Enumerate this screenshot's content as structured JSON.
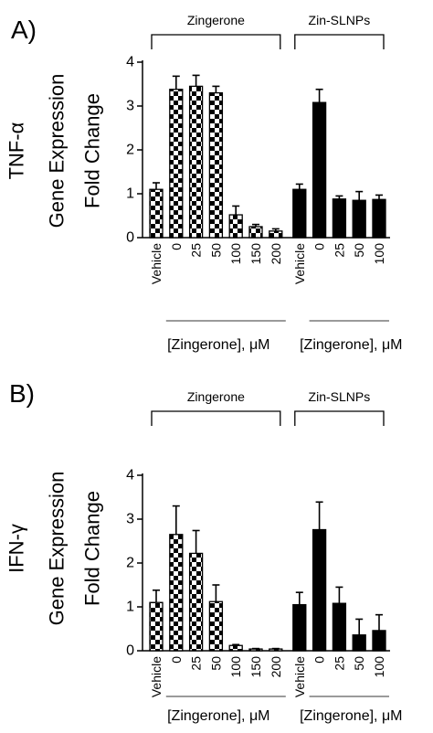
{
  "chart_data": [
    {
      "type": "bar",
      "panel_label": "A)",
      "ylabel_lines": [
        "TNF-α",
        "Gene Expression",
        "Fold Change"
      ],
      "ylim": [
        0,
        4
      ],
      "yticks": [
        "0",
        "1",
        "2",
        "3",
        "4"
      ],
      "categories": [
        "Vehicle",
        "0",
        "25",
        "50",
        "100",
        "150",
        "200",
        "Vehicle",
        "0",
        "25",
        "50",
        "100"
      ],
      "values": [
        1.1,
        3.38,
        3.45,
        3.3,
        0.52,
        0.25,
        0.15,
        1.1,
        3.08,
        0.88,
        0.85,
        0.87
      ],
      "errors": [
        0.15,
        0.3,
        0.25,
        0.15,
        0.2,
        0.05,
        0.05,
        0.12,
        0.3,
        0.07,
        0.2,
        0.1
      ],
      "fills": [
        "checker",
        "checker",
        "checker",
        "checker",
        "checker",
        "checker",
        "checker",
        "solid",
        "solid",
        "solid",
        "solid",
        "solid"
      ],
      "groups": [
        {
          "label": "Zingerone",
          "start": 0,
          "end": 6
        },
        {
          "label": "Zin-SLNPs",
          "start": 7,
          "end": 11
        }
      ],
      "xtitles": [
        {
          "label": "[Zingerone], μM",
          "start": 1,
          "end": 6
        },
        {
          "label": "[Zingerone], μM",
          "start": 8,
          "end": 11
        }
      ],
      "colors": {
        "solid": "#000000",
        "pattern": "#000000",
        "underline": "#9a9a9a"
      }
    },
    {
      "type": "bar",
      "panel_label": "B)",
      "ylabel_lines": [
        "IFN-γ",
        "Gene Expression",
        "Fold Change"
      ],
      "ylim": [
        0,
        4
      ],
      "yticks": [
        "0",
        "1",
        "2",
        "3",
        "4"
      ],
      "categories": [
        "Vehicle",
        "0",
        "25",
        "50",
        "100",
        "150",
        "200",
        "Vehicle",
        "0",
        "25",
        "50",
        "100"
      ],
      "values": [
        1.1,
        2.65,
        2.22,
        1.12,
        0.12,
        0.04,
        0.04,
        1.05,
        2.76,
        1.08,
        0.36,
        0.46
      ],
      "errors": [
        0.28,
        0.65,
        0.52,
        0.38,
        0.02,
        0.01,
        0.01,
        0.28,
        0.63,
        0.37,
        0.36,
        0.36
      ],
      "fills": [
        "checker",
        "checker",
        "checker",
        "checker",
        "checker",
        "checker",
        "checker",
        "solid",
        "solid",
        "solid",
        "solid",
        "solid"
      ],
      "groups": [
        {
          "label": "Zingerone",
          "start": 0,
          "end": 6
        },
        {
          "label": "Zin-SLNPs",
          "start": 7,
          "end": 11
        }
      ],
      "xtitles": [
        {
          "label": "[Zingerone], μM",
          "start": 1,
          "end": 6
        },
        {
          "label": "[Zingerone], μM",
          "start": 8,
          "end": 11
        }
      ],
      "colors": {
        "solid": "#000000",
        "pattern": "#000000",
        "underline": "#9a9a9a"
      }
    }
  ]
}
